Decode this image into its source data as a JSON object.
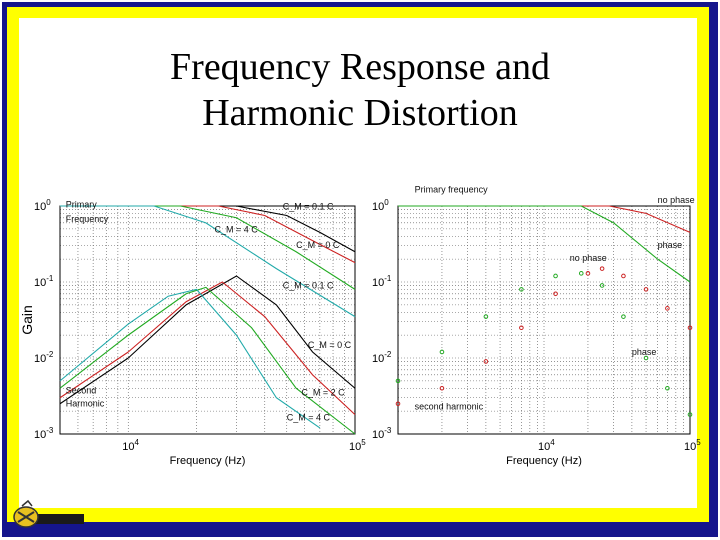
{
  "slide": {
    "title_line1": "Frequency Response and",
    "title_line2": "Harmonic Distortion",
    "colors": {
      "border_outer": "#15158c",
      "border_inner": "#ffff00"
    }
  },
  "chart_data": [
    {
      "type": "line",
      "log_x": true,
      "log_y": true,
      "xlim": [
        5000,
        100000
      ],
      "ylim": [
        0.001,
        1
      ],
      "xlabel": "Frequency (Hz)",
      "ylabel": "Gain",
      "x_ticks": [
        {
          "base": "10",
          "exp": "4",
          "value": 10000
        },
        {
          "base": "10",
          "exp": "5",
          "value": 100000
        }
      ],
      "y_ticks": [
        {
          "base": "10",
          "exp": "0",
          "value": 1
        },
        {
          "base": "10",
          "exp": "-1",
          "value": 0.1
        },
        {
          "base": "10",
          "exp": "-2",
          "value": 0.01
        },
        {
          "base": "10",
          "exp": "-3",
          "value": 0.001
        }
      ],
      "annotations": [
        {
          "text": "Primary",
          "x": 5300,
          "y": 0.95
        },
        {
          "text": "Frequency",
          "x": 5300,
          "y": 0.62
        },
        {
          "text": "Second",
          "x": 5300,
          "y": 0.0034
        },
        {
          "text": "Harmonic",
          "x": 5300,
          "y": 0.0023
        },
        {
          "text": "C_M = 0.1 C",
          "x": 48000,
          "y": 0.9
        },
        {
          "text": "C_M = 4 C",
          "x": 24000,
          "y": 0.45
        },
        {
          "text": "C_M = 0 C",
          "x": 55000,
          "y": 0.28
        },
        {
          "text": "C_M = 0.1 C",
          "x": 48000,
          "y": 0.082
        },
        {
          "text": "C_M = 0 C",
          "x": 62000,
          "y": 0.0135
        },
        {
          "text": "C_M = 2 C",
          "x": 58000,
          "y": 0.0032
        },
        {
          "text": "C_M = 4 C",
          "x": 50000,
          "y": 0.0015
        }
      ],
      "series": [
        {
          "color": "#000000",
          "points": [
            [
              5000,
              1
            ],
            [
              30000,
              1
            ],
            [
              50000,
              0.75
            ],
            [
              70000,
              0.45
            ],
            [
              100000,
              0.25
            ]
          ],
          "second": [
            [
              5000,
              0.0025
            ],
            [
              10000,
              0.01
            ],
            [
              18000,
              0.05
            ],
            [
              30000,
              0.12
            ],
            [
              45000,
              0.05
            ],
            [
              65000,
              0.012
            ],
            [
              100000,
              0.004
            ]
          ]
        },
        {
          "color": "#cc2222",
          "points": [
            [
              5000,
              1
            ],
            [
              25000,
              1
            ],
            [
              40000,
              0.75
            ],
            [
              65000,
              0.35
            ],
            [
              100000,
              0.18
            ]
          ],
          "second": [
            [
              5000,
              0.003
            ],
            [
              10000,
              0.012
            ],
            [
              18000,
              0.055
            ],
            [
              26000,
              0.1
            ],
            [
              40000,
              0.035
            ],
            [
              65000,
              0.006
            ],
            [
              100000,
              0.0018
            ]
          ]
        },
        {
          "color": "#22aa22",
          "points": [
            [
              5000,
              1
            ],
            [
              17000,
              1
            ],
            [
              30000,
              0.7
            ],
            [
              55000,
              0.25
            ],
            [
              100000,
              0.08
            ]
          ],
          "second": [
            [
              5000,
              0.004
            ],
            [
              10000,
              0.02
            ],
            [
              18000,
              0.07
            ],
            [
              22000,
              0.085
            ],
            [
              35000,
              0.025
            ],
            [
              55000,
              0.004
            ],
            [
              100000,
              0.001
            ]
          ]
        },
        {
          "color": "#22aaaa",
          "points": [
            [
              5000,
              1
            ],
            [
              13000,
              1
            ],
            [
              22000,
              0.6
            ],
            [
              45000,
              0.15
            ],
            [
              100000,
              0.035
            ]
          ],
          "second": [
            [
              5000,
              0.005
            ],
            [
              10000,
              0.028
            ],
            [
              15000,
              0.065
            ],
            [
              20000,
              0.08
            ],
            [
              30000,
              0.02
            ],
            [
              45000,
              0.003
            ],
            [
              70000,
              0.0012
            ]
          ]
        }
      ]
    },
    {
      "type": "line",
      "log_x": true,
      "log_y": true,
      "xlim": [
        1000,
        100000
      ],
      "ylim": [
        0.001,
        1
      ],
      "xlabel": "Frequency (Hz)",
      "ylabel": "",
      "x_ticks": [
        {
          "base": "10",
          "exp": "4",
          "value": 10000
        },
        {
          "base": "10",
          "exp": "5",
          "value": 100000
        }
      ],
      "y_ticks": [
        {
          "base": "10",
          "exp": "0",
          "value": 1
        },
        {
          "base": "10",
          "exp": "-1",
          "value": 0.1
        },
        {
          "base": "10",
          "exp": "-2",
          "value": 0.01
        },
        {
          "base": "10",
          "exp": "-3",
          "value": 0.001
        }
      ],
      "annotations": [
        {
          "text": "Primary frequency",
          "x": 1300,
          "y": 1.5
        },
        {
          "text": "no phase",
          "x": 60000,
          "y": 1.1
        },
        {
          "text": "phase",
          "x": 60000,
          "y": 0.28
        },
        {
          "text": "no phase",
          "x": 15000,
          "y": 0.19
        },
        {
          "text": "phase",
          "x": 40000,
          "y": 0.011
        },
        {
          "text": "second harmonic",
          "x": 1300,
          "y": 0.0021
        }
      ],
      "series": [
        {
          "name": "no phase",
          "color": "#cc2222",
          "style": "line",
          "points": [
            [
              1000,
              1
            ],
            [
              28000,
              1
            ],
            [
              50000,
              0.8
            ],
            [
              100000,
              0.45
            ]
          ]
        },
        {
          "name": "phase",
          "color": "#22aa22",
          "style": "line",
          "points": [
            [
              1000,
              1
            ],
            [
              18000,
              1
            ],
            [
              30000,
              0.6
            ],
            [
              60000,
              0.2
            ],
            [
              100000,
              0.1
            ]
          ]
        },
        {
          "name": "no phase",
          "color": "#cc2222",
          "style": "markers",
          "points": [
            [
              1000,
              0.0025
            ],
            [
              2000,
              0.004
            ],
            [
              4000,
              0.009
            ],
            [
              7000,
              0.025
            ],
            [
              12000,
              0.07
            ],
            [
              20000,
              0.13
            ],
            [
              25000,
              0.15
            ],
            [
              35000,
              0.12
            ],
            [
              50000,
              0.08
            ],
            [
              70000,
              0.045
            ],
            [
              100000,
              0.025
            ]
          ]
        },
        {
          "name": "phase",
          "color": "#22aa22",
          "style": "markers",
          "points": [
            [
              1000,
              0.005
            ],
            [
              2000,
              0.012
            ],
            [
              4000,
              0.035
            ],
            [
              7000,
              0.08
            ],
            [
              12000,
              0.12
            ],
            [
              18000,
              0.13
            ],
            [
              25000,
              0.09
            ],
            [
              35000,
              0.035
            ],
            [
              50000,
              0.01
            ],
            [
              70000,
              0.004
            ],
            [
              100000,
              0.0018
            ]
          ]
        }
      ]
    }
  ]
}
